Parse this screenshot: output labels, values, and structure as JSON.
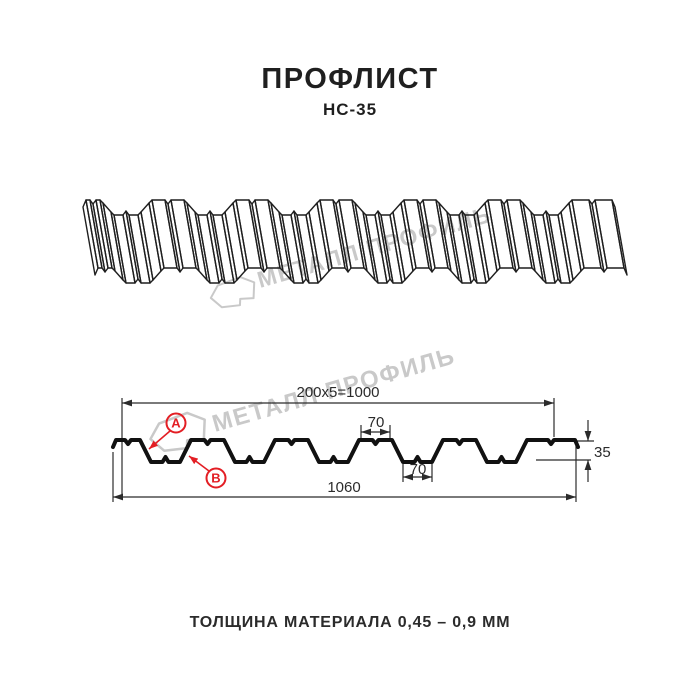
{
  "header": {
    "title": "ПРОФЛИСТ",
    "subtitle": "НС-35"
  },
  "footer": {
    "text": "ТОЛЩИНА МАТЕРИАЛА 0,45 – 0,9 ММ"
  },
  "watermark": {
    "text": "МЕТАЛЛ ПРОФИЛЬ"
  },
  "diagram": {
    "dim_top_coverage": "200x5=1000",
    "dim_rib_top": "70",
    "dim_rib_bottom": "70",
    "dim_height": "35",
    "dim_total_width": "1060",
    "label_a": "A",
    "label_b": "B"
  },
  "colors": {
    "accent": "#e31e24",
    "line": "#1f1f1f",
    "dim": "#2b2b2b",
    "watermark": "#c9c9c9",
    "background": "#ffffff"
  }
}
